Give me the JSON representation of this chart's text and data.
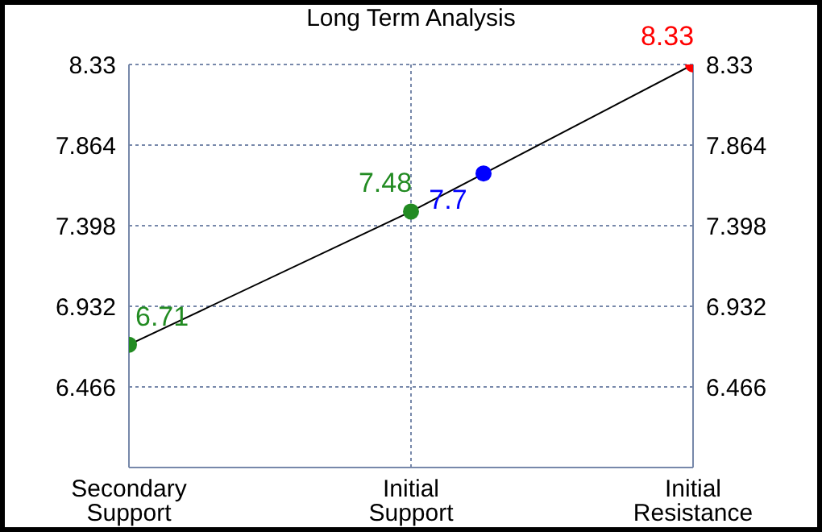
{
  "chart_data": {
    "type": "line",
    "title": "Long Term Analysis",
    "categories": [
      "Secondary Support",
      "Initial Support",
      "Initial Resistance"
    ],
    "ylim": [
      6.0,
      8.33
    ],
    "yticks": [
      6.466,
      6.932,
      7.398,
      7.864,
      8.33
    ],
    "y2lim": [
      6.0,
      8.33
    ],
    "y2ticks": [
      6.466,
      6.932,
      7.398,
      7.864,
      8.33
    ],
    "series": [
      {
        "type": "line",
        "color": "#000000",
        "values": [
          6.71,
          7.48,
          8.33
        ],
        "colors": [
          "#228b22",
          "#228b22",
          "#ff0000"
        ]
      },
      {
        "type": "scatter",
        "color": "#0000ff",
        "x": [
          "Initial Support"
        ],
        "values": [
          7.7
        ]
      }
    ],
    "data_labels": true,
    "grid": true,
    "marker": "circle",
    "line_style": "solid"
  }
}
